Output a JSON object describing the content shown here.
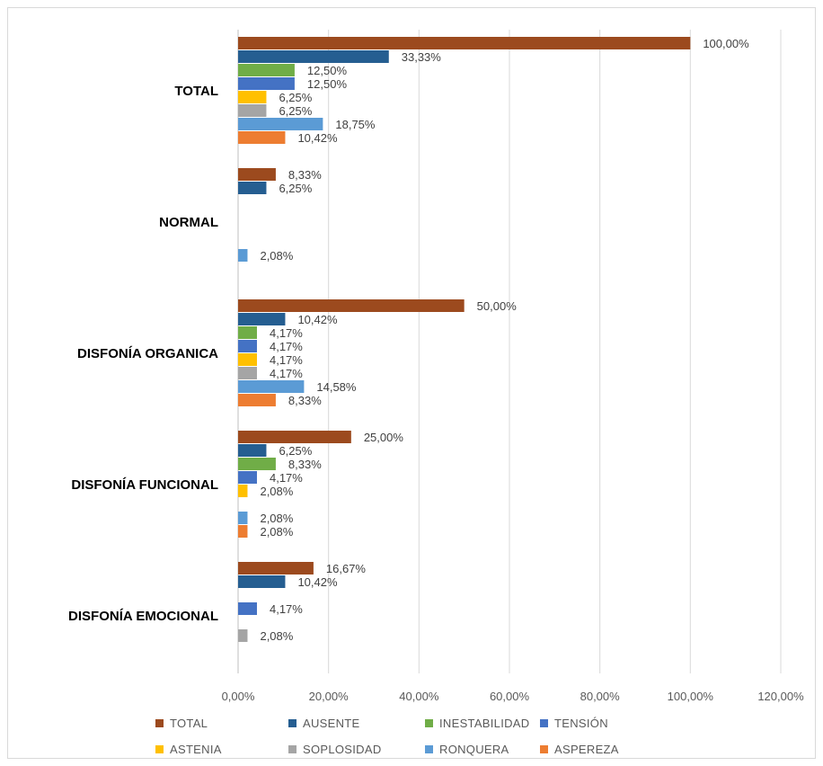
{
  "chart_data": {
    "type": "bar",
    "orientation": "horizontal",
    "categories": [
      "TOTAL",
      "NORMAL",
      "DISFONÍA ORGANICA",
      "DISFONÍA FUNCIONAL",
      "DISFONÍA EMOCIONAL"
    ],
    "series": [
      {
        "name": "TOTAL",
        "color": "#9c4a1e",
        "values": [
          100.0,
          8.33,
          50.0,
          25.0,
          16.67
        ],
        "labels": [
          "100,00%",
          "8,33%",
          "50,00%",
          "25,00%",
          "16,67%"
        ]
      },
      {
        "name": "AUSENTE",
        "color": "#255e91",
        "values": [
          33.33,
          6.25,
          10.42,
          6.25,
          10.42
        ],
        "labels": [
          "33,33%",
          "6,25%",
          "10,42%",
          "6,25%",
          "10,42%"
        ]
      },
      {
        "name": "INESTABILIDAD",
        "color": "#70ad47",
        "values": [
          12.5,
          0,
          4.17,
          8.33,
          0
        ],
        "labels": [
          "12,50%",
          "",
          "4,17%",
          "8,33%",
          ""
        ]
      },
      {
        "name": "TENSIÓN",
        "color": "#4472c4",
        "values": [
          12.5,
          0,
          4.17,
          4.17,
          4.17
        ],
        "labels": [
          "12,50%",
          "",
          "4,17%",
          "4,17%",
          "4,17%"
        ]
      },
      {
        "name": "ASTENIA",
        "color": "#ffc000",
        "values": [
          6.25,
          0,
          4.17,
          2.08,
          0
        ],
        "labels": [
          "6,25%",
          "",
          "4,17%",
          "2,08%",
          ""
        ]
      },
      {
        "name": "SOPLOSIDAD",
        "color": "#a5a5a5",
        "values": [
          6.25,
          0,
          4.17,
          0,
          2.08
        ],
        "labels": [
          "6,25%",
          "",
          "4,17%",
          "",
          "2,08%"
        ]
      },
      {
        "name": "RONQUERA",
        "color": "#5b9bd5",
        "values": [
          18.75,
          2.08,
          14.58,
          2.08,
          0
        ],
        "labels": [
          "18,75%",
          "2,08%",
          "14,58%",
          "2,08%",
          ""
        ]
      },
      {
        "name": "ASPEREZA",
        "color": "#ed7d31",
        "values": [
          10.42,
          0,
          8.33,
          2.08,
          0
        ],
        "labels": [
          "10,42%",
          "",
          "8,33%",
          "2,08%",
          ""
        ]
      }
    ],
    "xlim": [
      0,
      120
    ],
    "x_ticks": [
      0,
      20,
      40,
      60,
      80,
      100,
      120
    ],
    "x_tick_labels": [
      "0,00%",
      "20,00%",
      "40,00%",
      "60,00%",
      "80,00%",
      "100,00%",
      "120,00%"
    ],
    "grid": true,
    "legend_position": "bottom",
    "title": "",
    "xlabel": "",
    "ylabel": ""
  }
}
